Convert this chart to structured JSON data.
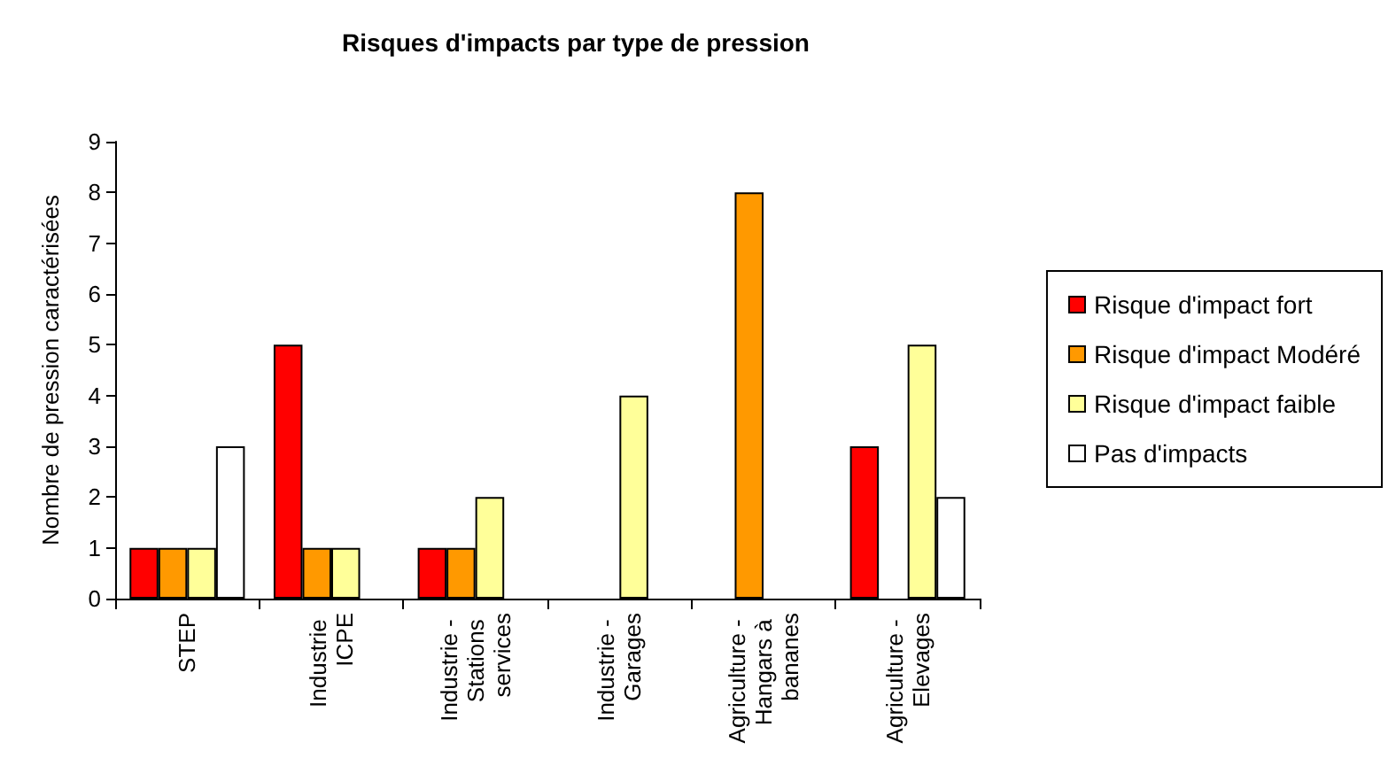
{
  "chart_data": {
    "type": "bar",
    "title": "Risques d'impacts par type de pression",
    "ylabel": "Nombre de pression caractérisées",
    "categories": [
      "STEP",
      "Industrie ICPE",
      "Industrie - Stations services",
      "Industrie - Garages",
      "Agriculture - Hangars à bananes",
      "Agriculture - Elevages"
    ],
    "series": [
      {
        "name": "Risque d'impact fort",
        "color": "#ff0000",
        "values": [
          1,
          5,
          1,
          0,
          0,
          3
        ]
      },
      {
        "name": "Risque d'impact Modéré",
        "color": "#ff9900",
        "values": [
          1,
          1,
          1,
          0,
          8,
          0
        ]
      },
      {
        "name": "Risque d'impact faible",
        "color": "#ffff99",
        "values": [
          1,
          1,
          2,
          4,
          0,
          5
        ]
      },
      {
        "name": "Pas d'impacts",
        "color": "#ffffff",
        "values": [
          3,
          0,
          0,
          0,
          0,
          2
        ]
      }
    ],
    "ylim": [
      0,
      9
    ],
    "yticks": [
      0,
      1,
      2,
      3,
      4,
      5,
      6,
      7,
      8,
      9
    ],
    "grid": false,
    "legend": "right"
  }
}
